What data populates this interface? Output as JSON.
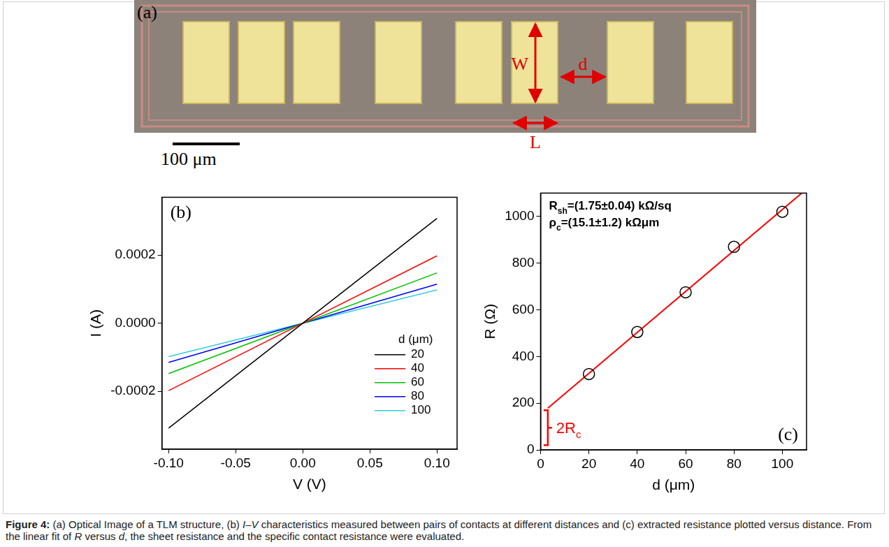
{
  "panel_a": {
    "label": "(a)",
    "arrow_labels": {
      "width": "W",
      "gap": "d",
      "length": "L"
    },
    "scale_bar": "100 μm"
  },
  "chart_data": [
    {
      "type": "line",
      "panel": "(b)",
      "x_label": "V (V)",
      "y_label": "I (A)",
      "x": [
        -0.1,
        0,
        0.1
      ],
      "series": [
        {
          "name": "20",
          "color": "#000000",
          "values": [
            -0.000308,
            0,
            0.000308
          ]
        },
        {
          "name": "40",
          "color": "#ff0000",
          "values": [
            -0.000198,
            0,
            0.000198
          ]
        },
        {
          "name": "60",
          "color": "#00c000",
          "values": [
            -0.000148,
            0,
            0.000148
          ]
        },
        {
          "name": "80",
          "color": "#0000ff",
          "values": [
            -0.000115,
            0,
            0.000115
          ]
        },
        {
          "name": "100",
          "color": "#33ccdd",
          "values": [
            -9.8e-05,
            0,
            9.8e-05
          ]
        }
      ],
      "legend": "lower right",
      "legend_title": "d (μm)",
      "xlim": [
        -0.105,
        0.115
      ],
      "xticks": [
        {
          "value": -0.1,
          "label": "-0.10"
        },
        {
          "value": -0.05,
          "label": "-0.05"
        },
        {
          "value": 0,
          "label": "0.00"
        },
        {
          "value": 0.05,
          "label": "0.05"
        },
        {
          "value": 0.1,
          "label": "0.10"
        }
      ],
      "ylim": [
        -0.00037,
        0.00037
      ],
      "yticks": [
        -0.0002,
        {
          "value": 0,
          "label": "0.0000"
        },
        0.0002
      ],
      "grid": false
    },
    {
      "type": "scatter",
      "panel": "(c)",
      "x_label": "d (μm)",
      "y_label": "R (Ω)",
      "series": [
        {
          "type": "scatter",
          "marker": "circle",
          "color": "#000000",
          "x": [
            20,
            40,
            60,
            80,
            100
          ],
          "values": [
            325,
            505,
            675,
            870,
            1020
          ]
        },
        {
          "type": "line",
          "marker": "none",
          "line_style": "solid",
          "color": "#ff0000",
          "x": [
            3,
            108
          ],
          "values": [
            179,
            1100
          ]
        }
      ],
      "annotations": [
        {
          "symbol": "R",
          "subscript": "sh",
          "text": "=(1.75±0.04) kΩ/sq"
        },
        {
          "symbol": "ρ",
          "subscript": "c",
          "text": "=(15.1±1.2) kΩμm"
        }
      ],
      "bracket": {
        "symbol": "2R",
        "subscript": "c",
        "color": "#ff0000",
        "x": 3,
        "y": [
          20,
          170
        ]
      },
      "xlim": [
        0,
        110
      ],
      "xticks": [
        0,
        20,
        40,
        60,
        80,
        100
      ],
      "ylim": [
        0,
        1100
      ],
      "yticks": [
        0,
        200,
        400,
        600,
        800,
        1000
      ],
      "grid": false
    }
  ],
  "caption": [
    {
      "text": "Figure 4:",
      "style": "bold"
    },
    {
      "text": " (a) Optical Image of a TLM structure, (b) "
    },
    {
      "text": "I–V",
      "style": "italic"
    },
    {
      "text": " characteristics measured between pairs of contacts at different distances and (c) extracted resistance plotted versus distance. From the linear fit of "
    },
    {
      "text": "R",
      "style": "italic"
    },
    {
      "text": " versus "
    },
    {
      "text": "d",
      "style": "italic"
    },
    {
      "text": ", the sheet resistance and the specific contact resistance were evaluated."
    }
  ]
}
